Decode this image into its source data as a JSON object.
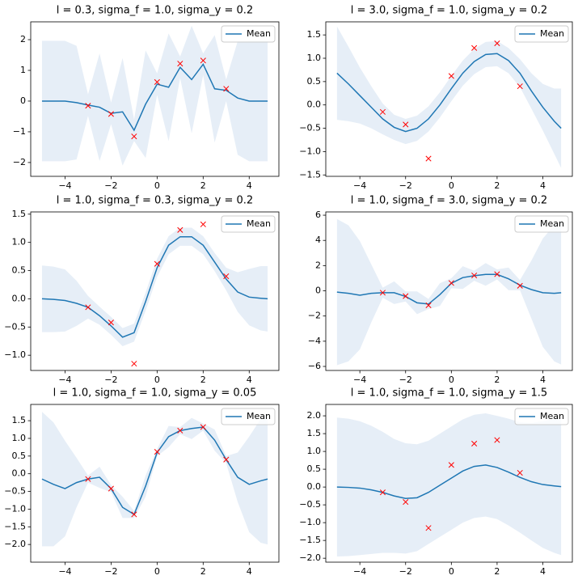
{
  "chart_data": [
    {
      "type": "line",
      "title": "l = 0.3, sigma_f = 1.0, sigma_y = 0.2",
      "x": [
        -5,
        -4.5,
        -4,
        -3.5,
        -3,
        -2.5,
        -2,
        -1.5,
        -1,
        -0.5,
        0,
        0.5,
        1,
        1.5,
        2,
        2.5,
        3,
        3.5,
        4,
        4.5,
        4.8
      ],
      "series": [
        {
          "name": "Mean",
          "color": "#1f77b4",
          "values": [
            0,
            0,
            0,
            -0.05,
            -0.13,
            -0.2,
            -0.4,
            -0.35,
            -0.95,
            -0.1,
            0.55,
            0.45,
            1.1,
            0.7,
            1.2,
            0.4,
            0.35,
            0.1,
            0,
            0,
            0
          ]
        }
      ],
      "band": {
        "color": "#e6eef7",
        "lower": [
          -1.96,
          -1.96,
          -1.96,
          -1.9,
          -0.48,
          -1.95,
          -0.75,
          -2.1,
          -1.3,
          -1.85,
          0.2,
          -1.3,
          0.75,
          -1.05,
          0.85,
          -1.35,
          0,
          -1.75,
          -1.96,
          -1.96,
          -1.96
        ],
        "upper": [
          1.96,
          1.96,
          1.96,
          1.8,
          0.22,
          1.55,
          -0.05,
          1.4,
          -0.6,
          1.65,
          0.9,
          2.2,
          1.45,
          2.45,
          1.55,
          2.15,
          0.7,
          1.95,
          1.96,
          1.96,
          1.96
        ]
      },
      "points": {
        "color": "#ff0000",
        "x": [
          -3,
          -2,
          -1,
          0,
          1,
          2,
          3
        ],
        "y": [
          -0.15,
          -0.42,
          -1.15,
          0.62,
          1.22,
          1.32,
          0.4
        ]
      },
      "xlim": [
        -5.49,
        5.29
      ],
      "ylim": [
        -2.45,
        2.58
      ],
      "xticks": [
        {
          "value": -4,
          "label": "−4"
        },
        {
          "value": -2,
          "label": "−2"
        },
        0,
        2,
        4
      ],
      "yticks": [
        {
          "value": -2,
          "label": "−2"
        },
        {
          "value": -1,
          "label": "−1"
        },
        0,
        1,
        2
      ],
      "legend": "upper right"
    },
    {
      "type": "line",
      "title": "l = 3.0, sigma_f = 1.0, sigma_y = 0.2",
      "x": [
        -5,
        -4.5,
        -4,
        -3.5,
        -3,
        -2.5,
        -2,
        -1.5,
        -1,
        -0.5,
        0,
        0.5,
        1,
        1.5,
        2,
        2.5,
        3,
        3.5,
        4,
        4.5,
        4.8
      ],
      "series": [
        {
          "name": "Mean",
          "color": "#1f77b4",
          "values": [
            0.68,
            0.45,
            0.2,
            -0.05,
            -0.3,
            -0.48,
            -0.57,
            -0.5,
            -0.3,
            0,
            0.35,
            0.68,
            0.93,
            1.08,
            1.1,
            0.95,
            0.68,
            0.3,
            -0.05,
            -0.35,
            -0.5
          ]
        }
      ],
      "band": {
        "color": "#e6eef7",
        "lower": [
          -0.32,
          -0.35,
          -0.4,
          -0.5,
          -0.63,
          -0.75,
          -0.84,
          -0.77,
          -0.57,
          -0.27,
          0.08,
          0.41,
          0.66,
          0.81,
          0.83,
          0.68,
          0.38,
          -0.08,
          -0.55,
          -1.05,
          -1.35
        ],
        "upper": [
          1.68,
          1.25,
          0.8,
          0.4,
          0.03,
          -0.21,
          -0.3,
          -0.23,
          -0.03,
          0.27,
          0.62,
          0.95,
          1.2,
          1.35,
          1.37,
          1.22,
          0.98,
          0.68,
          0.45,
          0.35,
          0.35
        ]
      },
      "points": {
        "color": "#ff0000",
        "x": [
          -3,
          -2,
          -1,
          0,
          1,
          2,
          3
        ],
        "y": [
          -0.15,
          -0.42,
          -1.15,
          0.62,
          1.22,
          1.32,
          0.4
        ]
      },
      "xlim": [
        -5.49,
        5.29
      ],
      "ylim": [
        -1.53,
        1.78
      ],
      "xticks": [
        {
          "value": -4,
          "label": "−4"
        },
        {
          "value": -2,
          "label": "−2"
        },
        0,
        2,
        4
      ],
      "yticks": [
        {
          "value": -1.5,
          "label": "−1.5"
        },
        {
          "value": -1,
          "label": "−1.0"
        },
        {
          "value": -0.5,
          "label": "−0.5"
        },
        {
          "value": 0,
          "label": "0.0"
        },
        0.5,
        {
          "value": 1,
          "label": "1.0"
        },
        1.5
      ],
      "legend": "upper right"
    },
    {
      "type": "line",
      "title": "l = 1.0, sigma_f = 0.3, sigma_y = 0.2",
      "x": [
        -5,
        -4.5,
        -4,
        -3.5,
        -3,
        -2.5,
        -2,
        -1.5,
        -1,
        -0.5,
        0,
        0.5,
        1,
        1.5,
        2,
        2.5,
        3,
        3.5,
        4,
        4.5,
        4.8
      ],
      "series": [
        {
          "name": "Mean",
          "color": "#1f77b4",
          "values": [
            0,
            -0.01,
            -0.03,
            -0.08,
            -0.15,
            -0.3,
            -0.48,
            -0.68,
            -0.6,
            -0.05,
            0.55,
            0.95,
            1.1,
            1.1,
            0.95,
            0.65,
            0.35,
            0.12,
            0.03,
            0.01,
            0
          ]
        }
      ],
      "band": {
        "color": "#e6eef7",
        "lower": [
          -0.59,
          -0.59,
          -0.58,
          -0.48,
          -0.35,
          -0.46,
          -0.64,
          -0.84,
          -0.76,
          -0.21,
          0.39,
          0.79,
          0.94,
          0.94,
          0.79,
          0.49,
          0.15,
          -0.23,
          -0.47,
          -0.56,
          -0.58
        ],
        "upper": [
          0.59,
          0.57,
          0.52,
          0.32,
          0.05,
          -0.14,
          -0.32,
          -0.52,
          -0.44,
          0.11,
          0.71,
          1.11,
          1.26,
          1.26,
          1.11,
          0.81,
          0.55,
          0.47,
          0.53,
          0.58,
          0.58
        ]
      },
      "points": {
        "color": "#ff0000",
        "x": [
          -3,
          -2,
          -1,
          0,
          1,
          2,
          3
        ],
        "y": [
          -0.15,
          -0.42,
          -1.15,
          0.62,
          1.22,
          1.32,
          0.4
        ]
      },
      "xlim": [
        -5.49,
        5.29
      ],
      "ylim": [
        -1.27,
        1.54
      ],
      "xticks": [
        {
          "value": -4,
          "label": "−4"
        },
        {
          "value": -2,
          "label": "−2"
        },
        0,
        2,
        4
      ],
      "yticks": [
        {
          "value": -1,
          "label": "−1.0"
        },
        {
          "value": -0.5,
          "label": "−0.5"
        },
        {
          "value": 0,
          "label": "0.0"
        },
        0.5,
        {
          "value": 1,
          "label": "1.0"
        },
        1.5
      ],
      "legend": "upper right"
    },
    {
      "type": "line",
      "title": "l = 1.0, sigma_f = 3.0, sigma_y = 0.2",
      "x": [
        -5,
        -4.5,
        -4,
        -3.5,
        -3,
        -2.5,
        -2,
        -1.5,
        -1,
        -0.5,
        0,
        0.5,
        1,
        1.5,
        2,
        2.5,
        3,
        3.5,
        4,
        4.5,
        4.8
      ],
      "series": [
        {
          "name": "Mean",
          "color": "#1f77b4",
          "values": [
            -0.1,
            -0.2,
            -0.35,
            -0.2,
            -0.15,
            -0.15,
            -0.45,
            -0.95,
            -1.05,
            -0.3,
            0.6,
            1.05,
            1.2,
            1.3,
            1.3,
            0.95,
            0.45,
            0.1,
            -0.15,
            -0.2,
            -0.15
          ]
        }
      ],
      "band": {
        "color": "#e6eef7",
        "lower": [
          -5.9,
          -5.6,
          -4.65,
          -2.5,
          -0.55,
          -1.05,
          -0.85,
          -1.85,
          -1.45,
          -1.2,
          0.2,
          0.15,
          0.8,
          0.4,
          0.9,
          0.05,
          0.05,
          -2.2,
          -4.45,
          -5.6,
          -5.85
        ],
        "upper": [
          5.7,
          5.2,
          3.95,
          2.1,
          0.25,
          0.75,
          -0.05,
          -0.05,
          -0.65,
          0.6,
          1,
          1.95,
          1.6,
          2.2,
          1.7,
          1.85,
          0.85,
          2.4,
          4.15,
          5.2,
          5.55
        ]
      },
      "points": {
        "color": "#ff0000",
        "x": [
          -3,
          -2,
          -1,
          0,
          1,
          2,
          3
        ],
        "y": [
          -0.15,
          -0.42,
          -1.15,
          0.62,
          1.22,
          1.32,
          0.4
        ]
      },
      "xlim": [
        -5.49,
        5.29
      ],
      "ylim": [
        -6.32,
        6.26
      ],
      "xticks": [
        {
          "value": -4,
          "label": "−4"
        },
        {
          "value": -2,
          "label": "−2"
        },
        0,
        2,
        4
      ],
      "yticks": [
        {
          "value": -6,
          "label": "−6"
        },
        {
          "value": -4,
          "label": "−4"
        },
        {
          "value": -2,
          "label": "−2"
        },
        0,
        2,
        4,
        6
      ],
      "legend": "upper right"
    },
    {
      "type": "line",
      "title": "l = 1.0, sigma_f = 1.0, sigma_y = 0.05",
      "x": [
        -5,
        -4.5,
        -4,
        -3.5,
        -3,
        -2.5,
        -2,
        -1.5,
        -1,
        -0.5,
        0,
        0.5,
        1,
        1.5,
        2,
        2.5,
        3,
        3.5,
        4,
        4.5,
        4.8
      ],
      "series": [
        {
          "name": "Mean",
          "color": "#1f77b4",
          "values": [
            -0.15,
            -0.3,
            -0.42,
            -0.25,
            -0.15,
            -0.1,
            -0.42,
            -0.95,
            -1.15,
            -0.35,
            0.6,
            1.05,
            1.22,
            1.28,
            1.32,
            0.95,
            0.4,
            -0.1,
            -0.3,
            -0.2,
            -0.15
          ]
        }
      ],
      "band": {
        "color": "#e6eef7",
        "lower": [
          -2.05,
          -2.05,
          -1.77,
          -0.95,
          -0.25,
          -0.4,
          -0.52,
          -1.25,
          -1.25,
          -0.65,
          0.5,
          0.75,
          1.12,
          0.98,
          1.22,
          0.65,
          0.3,
          -0.8,
          -1.65,
          -1.95,
          -2
        ],
        "upper": [
          1.75,
          1.45,
          0.93,
          0.45,
          -0.05,
          0.2,
          -0.32,
          -0.65,
          -1.05,
          -0.05,
          0.7,
          1.35,
          1.32,
          1.58,
          1.42,
          1.25,
          0.5,
          0.6,
          1.05,
          1.55,
          1.7
        ]
      },
      "points": {
        "color": "#ff0000",
        "x": [
          -3,
          -2,
          -1,
          0,
          1,
          2,
          3
        ],
        "y": [
          -0.15,
          -0.42,
          -1.15,
          0.62,
          1.22,
          1.32,
          0.4
        ]
      },
      "xlim": [
        -5.49,
        5.29
      ],
      "ylim": [
        -2.5,
        1.96
      ],
      "xticks": [
        {
          "value": -4,
          "label": "−4"
        },
        {
          "value": -2,
          "label": "−2"
        },
        0,
        2,
        4
      ],
      "yticks": [
        {
          "value": -2,
          "label": "−2.0"
        },
        {
          "value": -1.5,
          "label": "−1.5"
        },
        {
          "value": -1,
          "label": "−1.0"
        },
        {
          "value": -0.5,
          "label": "−0.5"
        },
        {
          "value": 0,
          "label": "0.0"
        },
        0.5,
        {
          "value": 1,
          "label": "1.0"
        },
        1.5
      ],
      "legend": "upper right"
    },
    {
      "type": "line",
      "title": "l = 1.0, sigma_f = 1.0, sigma_y = 1.5",
      "x": [
        -5,
        -4.5,
        -4,
        -3.5,
        -3,
        -2.5,
        -2,
        -1.5,
        -1,
        -0.5,
        0,
        0.5,
        1,
        1.5,
        2,
        2.5,
        3,
        3.5,
        4,
        4.5,
        4.8
      ],
      "series": [
        {
          "name": "Mean",
          "color": "#1f77b4",
          "values": [
            0,
            -0.01,
            -0.03,
            -0.08,
            -0.15,
            -0.25,
            -0.32,
            -0.3,
            -0.15,
            0.05,
            0.25,
            0.45,
            0.58,
            0.62,
            0.55,
            0.42,
            0.27,
            0.15,
            0.07,
            0.03,
            0.01
          ]
        }
      ],
      "band": {
        "color": "#e6eef7",
        "lower": [
          -1.95,
          -1.94,
          -1.91,
          -1.88,
          -1.85,
          -1.85,
          -1.87,
          -1.8,
          -1.6,
          -1.4,
          -1.2,
          -1,
          -0.87,
          -0.83,
          -0.9,
          -1.08,
          -1.28,
          -1.5,
          -1.71,
          -1.85,
          -1.91
        ],
        "upper": [
          1.95,
          1.92,
          1.85,
          1.72,
          1.55,
          1.35,
          1.23,
          1.2,
          1.3,
          1.5,
          1.7,
          1.9,
          2.03,
          2.07,
          2,
          1.92,
          1.82,
          1.8,
          1.85,
          1.91,
          1.93
        ]
      },
      "points": {
        "color": "#ff0000",
        "x": [
          -3,
          -2,
          -1,
          0,
          1,
          2,
          3
        ],
        "y": [
          -0.15,
          -0.42,
          -1.15,
          0.62,
          1.22,
          1.32,
          0.4
        ]
      },
      "xlim": [
        -5.49,
        5.29
      ],
      "ylim": [
        -2.11,
        2.32
      ],
      "xticks": [
        {
          "value": -4,
          "label": "−4"
        },
        {
          "value": -2,
          "label": "−2"
        },
        0,
        2,
        4
      ],
      "yticks": [
        {
          "value": -2,
          "label": "−2.0"
        },
        {
          "value": -1.5,
          "label": "−1.5"
        },
        {
          "value": -1,
          "label": "−1.0"
        },
        {
          "value": -0.5,
          "label": "−0.5"
        },
        {
          "value": 0,
          "label": "0.0"
        },
        0.5,
        {
          "value": 1,
          "label": "1.0"
        },
        1.5,
        {
          "value": 2,
          "label": "2.0"
        }
      ],
      "legend": "upper right"
    }
  ]
}
